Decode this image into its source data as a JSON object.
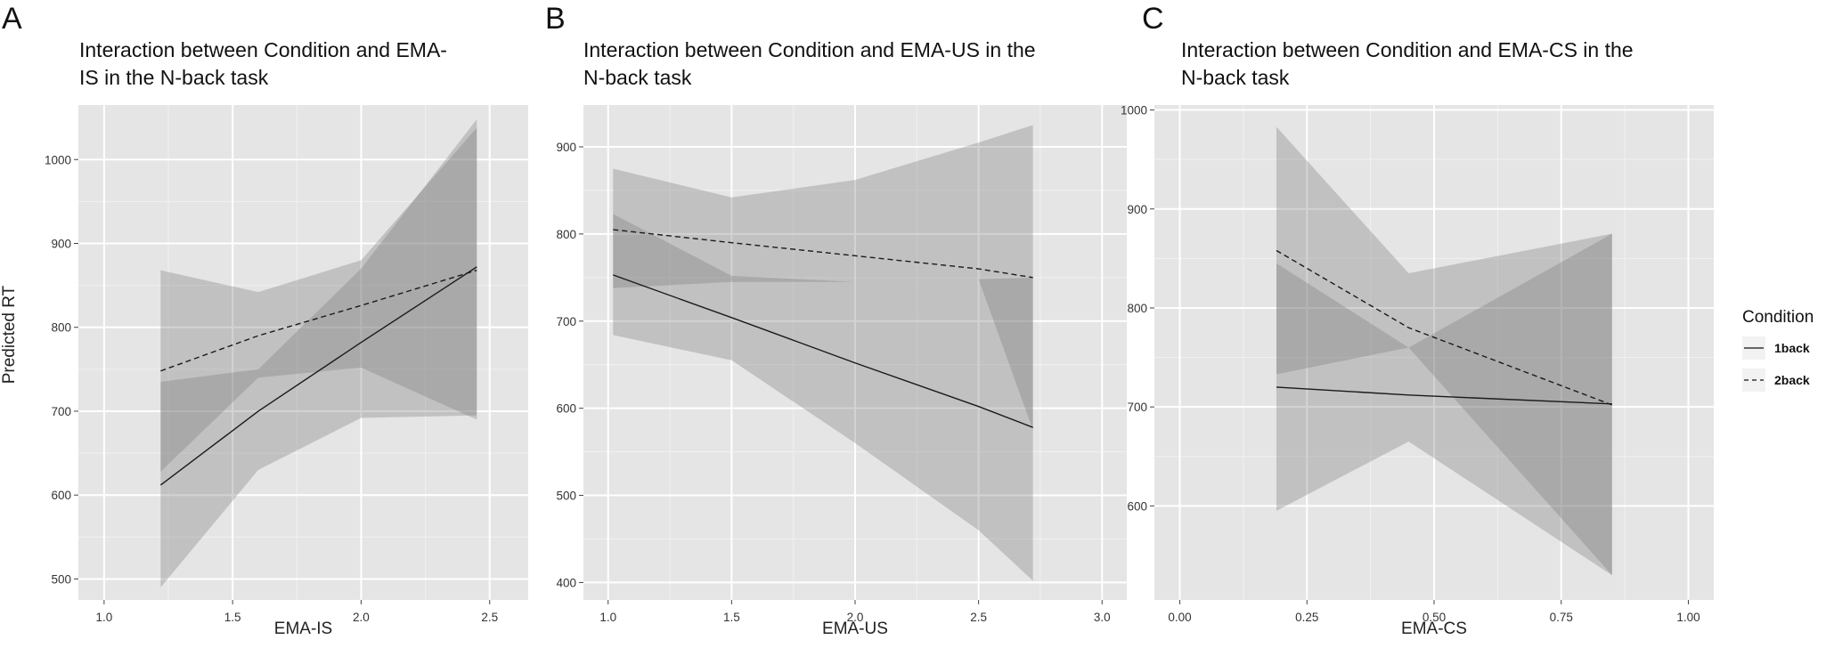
{
  "shared": {
    "ylabel": "Predicted RT",
    "legend": {
      "title": "Condition",
      "placement": "right",
      "entries": [
        {
          "label": "1back",
          "dash": "solid"
        },
        {
          "label": "2back",
          "dash": "dashed"
        }
      ]
    }
  },
  "chart_data": [
    {
      "panel": "A",
      "type": "line",
      "title_lines": [
        "Interaction between Condition and EMA-",
        "IS in the N-back task"
      ],
      "xlabel": "EMA-IS",
      "xlim": [
        0.9,
        2.65
      ],
      "ylim": [
        475,
        1065
      ],
      "xticks": [
        1.0,
        1.5,
        2.0,
        2.5
      ],
      "xtick_labels": [
        "1.0",
        "1.5",
        "2.0",
        "2.5"
      ],
      "yticks": [
        500,
        600,
        700,
        800,
        900,
        1000
      ],
      "ytick_labels": [
        "500",
        "600",
        "700",
        "800",
        "900",
        "1000"
      ],
      "grid": true,
      "series": [
        {
          "name": "1back",
          "dash": "solid",
          "x": [
            1.22,
            1.6,
            2.0,
            2.45
          ],
          "y": [
            612,
            700,
            782,
            872
          ],
          "ci_lower": [
            490,
            630,
            692,
            695
          ],
          "ci_upper": [
            735,
            750,
            870,
            1048
          ]
        },
        {
          "name": "2back",
          "dash": "dashed",
          "x": [
            1.22,
            1.6,
            2.0,
            2.45
          ],
          "y": [
            748,
            790,
            826,
            868
          ],
          "ci_lower": [
            628,
            740,
            752,
            690
          ],
          "ci_upper": [
            868,
            842,
            880,
            1038
          ]
        }
      ]
    },
    {
      "panel": "B",
      "type": "line",
      "title_lines": [
        "Interaction between Condition and EMA-US in the",
        "N-back task"
      ],
      "xlabel": "EMA-US",
      "xlim": [
        0.9,
        3.1
      ],
      "ylim": [
        380,
        948
      ],
      "xticks": [
        1.0,
        1.5,
        2.0,
        2.5,
        3.0
      ],
      "xtick_labels": [
        "1.0",
        "1.5",
        "2.0",
        "2.5",
        "3.0"
      ],
      "yticks": [
        400,
        500,
        600,
        700,
        800,
        900
      ],
      "ytick_labels": [
        "400",
        "500",
        "600",
        "700",
        "800",
        "900"
      ],
      "grid": true,
      "series": [
        {
          "name": "1back",
          "dash": "solid",
          "x": [
            1.02,
            1.5,
            2.0,
            2.5,
            2.72
          ],
          "y": [
            753,
            704,
            652,
            602,
            578
          ],
          "ci_lower": [
            684,
            655,
            560,
            460,
            402
          ],
          "ci_upper": [
            823,
            752,
            745,
            748,
            750
          ]
        },
        {
          "name": "2back",
          "dash": "dashed",
          "x": [
            1.02,
            1.5,
            2.0,
            2.5,
            2.72
          ],
          "y": [
            805,
            790,
            775,
            760,
            750
          ],
          "ci_lower": [
            738,
            745,
            745,
            748,
            575
          ],
          "ci_upper": [
            875,
            842,
            862,
            905,
            925
          ]
        }
      ]
    },
    {
      "panel": "C",
      "type": "line",
      "title_lines": [
        "Interaction between Condition and EMA-CS in the",
        "N-back task"
      ],
      "xlabel": "EMA-CS",
      "xlim": [
        -0.05,
        1.05
      ],
      "ylim": [
        505,
        1005
      ],
      "xticks": [
        0.0,
        0.25,
        0.5,
        0.75,
        1.0
      ],
      "xtick_labels": [
        "0.00",
        "0.25",
        "0.50",
        "0.75",
        "1.00"
      ],
      "yticks": [
        600,
        700,
        800,
        900,
        1000
      ],
      "ytick_labels": [
        "600",
        "700",
        "800",
        "900",
        "1000"
      ],
      "grid": true,
      "series": [
        {
          "name": "1back",
          "dash": "solid",
          "x": [
            0.19,
            0.45,
            0.85
          ],
          "y": [
            720,
            712,
            703
          ],
          "ci_lower": [
            595,
            665,
            530
          ],
          "ci_upper": [
            845,
            760,
            875
          ]
        },
        {
          "name": "2back",
          "dash": "dashed",
          "x": [
            0.19,
            0.45,
            0.85
          ],
          "y": [
            858,
            780,
            702
          ],
          "ci_lower": [
            733,
            760,
            530
          ],
          "ci_upper": [
            983,
            835,
            875
          ]
        }
      ]
    }
  ]
}
